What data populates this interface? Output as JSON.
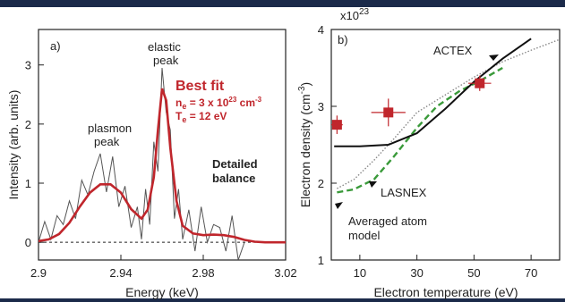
{
  "chart_data": [
    {
      "type": "line",
      "panel_label": "a)",
      "xlabel": "Energy (keV)",
      "ylabel": "Intensity (arb. units)",
      "xlim": [
        2.9,
        3.02
      ],
      "ylim": [
        -0.3,
        3.6
      ],
      "xticks": [
        "2.9",
        "2.94",
        "2.98",
        "3.02"
      ],
      "xtick_values": [
        2.9,
        2.94,
        2.98,
        3.02
      ],
      "yticks": [
        "0",
        "1",
        "2",
        "3"
      ],
      "ytick_values": [
        0,
        1,
        2,
        3
      ],
      "annotations": {
        "plasmon": [
          "plasmon",
          "peak"
        ],
        "elastic": [
          "elastic",
          "peak"
        ],
        "best_fit": "Best fit",
        "density_prefix": "n",
        "density_sub": "e",
        "density_mid": " = 3 x 10",
        "density_exp": "23",
        "density_unit": " cm",
        "density_unit_exp": "-3",
        "temp_prefix": "T",
        "temp_sub": "e",
        "temp_rest": " = 12 eV",
        "detailed": [
          "Detailed",
          "balance"
        ]
      },
      "series": [
        {
          "name": "Best fit",
          "color": "#c0262c",
          "x": [
            2.9,
            2.905,
            2.91,
            2.915,
            2.92,
            2.925,
            2.93,
            2.935,
            2.94,
            2.945,
            2.95,
            2.953,
            2.956,
            2.958,
            2.96,
            2.962,
            2.964,
            2.967,
            2.97,
            2.975,
            2.98,
            2.985,
            2.99,
            2.995,
            3.0,
            3.005,
            3.01,
            3.02
          ],
          "values": [
            0.02,
            0.05,
            0.14,
            0.33,
            0.6,
            0.84,
            0.98,
            0.98,
            0.84,
            0.56,
            0.4,
            0.55,
            1.1,
            1.9,
            2.6,
            2.4,
            1.6,
            0.7,
            0.28,
            0.15,
            0.12,
            0.13,
            0.12,
            0.09,
            0.04,
            0.01,
            0.0,
            0.0
          ]
        },
        {
          "name": "",
          "color": "#555555",
          "x": [
            2.9,
            2.903,
            2.906,
            2.909,
            2.912,
            2.915,
            2.918,
            2.921,
            2.924,
            2.927,
            2.93,
            2.933,
            2.936,
            2.939,
            2.942,
            2.945,
            2.948,
            2.95,
            2.952,
            2.954,
            2.956,
            2.958,
            2.96,
            2.962,
            2.964,
            2.966,
            2.968,
            2.97,
            2.973,
            2.976,
            2.979,
            2.982,
            2.985,
            2.988,
            2.991,
            2.994,
            2.997,
            3.0
          ],
          "values": [
            0.0,
            0.35,
            0.05,
            0.45,
            0.3,
            0.7,
            0.4,
            1.05,
            0.8,
            1.2,
            1.5,
            0.85,
            1.45,
            0.6,
            0.95,
            0.25,
            0.6,
            0.05,
            0.9,
            0.3,
            1.7,
            1.2,
            2.95,
            2.2,
            1.9,
            0.4,
            0.9,
            0.05,
            0.55,
            -0.15,
            0.6,
            0.0,
            0.3,
            0.25,
            -0.15,
            0.45,
            -0.3,
            0.0
          ]
        }
      ]
    },
    {
      "type": "line",
      "panel_label": "b)",
      "xlabel": "Electron temperature (eV)",
      "ylabel": "Electron density (cm",
      "ylabel_exp": "-3",
      "ylabel_end": ")",
      "y_multiplier": "x10",
      "y_multiplier_exp": "23",
      "xlim": [
        0,
        80
      ],
      "ylim": [
        1,
        4
      ],
      "xticks": [
        "10",
        "30",
        "50",
        "70"
      ],
      "xtick_values": [
        10,
        30,
        50,
        70
      ],
      "yticks": [
        "1",
        "2",
        "3",
        "4"
      ],
      "ytick_values": [
        1,
        2,
        3,
        4
      ],
      "annotations": {
        "actex": "ACTEX",
        "lasnex": "LASNEX",
        "avg_atom": [
          "Averaged atom",
          "model"
        ]
      },
      "series": [
        {
          "name": "ACTEX",
          "color": "#111111",
          "style": "solid",
          "x": [
            1,
            10,
            20,
            30,
            40,
            50,
            60,
            70
          ],
          "values": [
            2.48,
            2.48,
            2.5,
            2.65,
            2.97,
            3.32,
            3.62,
            3.88
          ]
        },
        {
          "name": "LASNEX",
          "color": "#3a9a3a",
          "style": "dashed",
          "x": [
            2,
            8,
            15,
            22,
            30,
            37,
            45,
            52,
            60
          ],
          "values": [
            1.88,
            1.92,
            2.05,
            2.35,
            2.72,
            3.0,
            3.2,
            3.33,
            3.5
          ]
        },
        {
          "name": "Averaged atom model",
          "color": "#888888",
          "style": "dotted",
          "x": [
            2,
            8,
            15,
            22,
            30,
            40,
            50,
            60,
            70,
            80
          ],
          "values": [
            1.93,
            2.05,
            2.3,
            2.58,
            2.92,
            3.15,
            3.38,
            3.58,
            3.73,
            3.87
          ]
        },
        {
          "name": "",
          "color": "#c0262c",
          "style": "markers",
          "x": [
            2,
            20,
            52
          ],
          "values": [
            2.76,
            2.92,
            3.3
          ],
          "xerr": [
            2,
            6,
            4
          ],
          "yerr": [
            0.12,
            0.18,
            0.1
          ]
        }
      ]
    }
  ]
}
